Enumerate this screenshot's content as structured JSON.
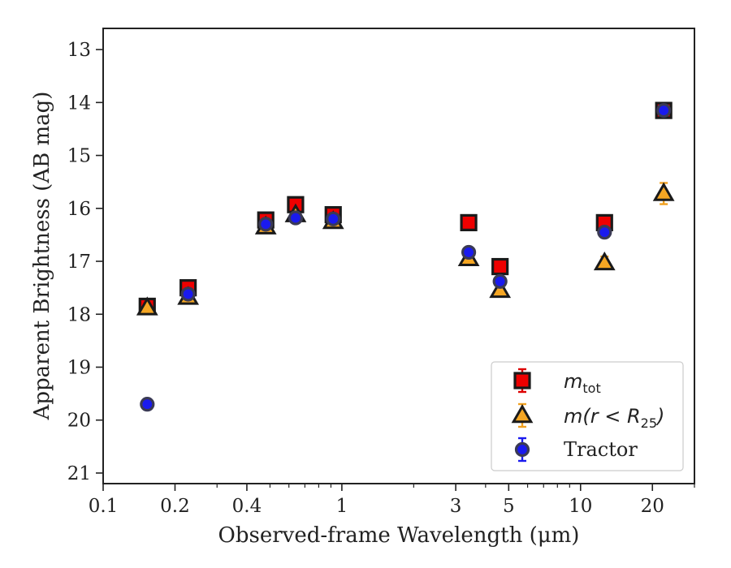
{
  "chart_data": {
    "type": "scatter",
    "title": "",
    "xlabel": "Observed-frame Wavelength (μm)",
    "ylabel": "Apparent Brightness (AB mag)",
    "xscale": "log",
    "xlim": [
      0.1,
      30
    ],
    "ylim": [
      21.2,
      12.6
    ],
    "y_inverted": true,
    "grid": false,
    "legend_position": "lower-right",
    "x_ticks": [
      {
        "value": 0.1,
        "label": "0.1"
      },
      {
        "value": 0.2,
        "label": "0.2"
      },
      {
        "value": 0.4,
        "label": "0.4"
      },
      {
        "value": 1,
        "label": "1"
      },
      {
        "value": 3,
        "label": "3"
      },
      {
        "value": 5,
        "label": "5"
      },
      {
        "value": 10,
        "label": "10"
      },
      {
        "value": 20,
        "label": "20"
      }
    ],
    "y_ticks": [
      {
        "value": 13,
        "label": "13"
      },
      {
        "value": 14,
        "label": "14"
      },
      {
        "value": 15,
        "label": "15"
      },
      {
        "value": 16,
        "label": "16"
      },
      {
        "value": 17,
        "label": "17"
      },
      {
        "value": 18,
        "label": "18"
      },
      {
        "value": 19,
        "label": "19"
      },
      {
        "value": 20,
        "label": "20"
      },
      {
        "value": 21,
        "label": "21"
      }
    ],
    "series": [
      {
        "key": "mtot",
        "name": "m_tot",
        "marker": "square",
        "color": "#ee0000",
        "errcolor": "#dd0000",
        "x": [
          0.153,
          0.227,
          0.48,
          0.64,
          0.92,
          3.4,
          4.6,
          12.6,
          22.3
        ],
        "y": [
          17.85,
          17.5,
          16.22,
          15.93,
          16.12,
          16.27,
          17.1,
          16.27,
          14.15
        ],
        "yerr": [
          0.06,
          0.05,
          0.04,
          0.04,
          0.04,
          0.04,
          0.05,
          0.06,
          0.05
        ]
      },
      {
        "key": "mr25",
        "name": "m(r < R25)",
        "marker": "triangle",
        "color": "#f5a623",
        "errcolor": "#f0a020",
        "x": [
          0.153,
          0.227,
          0.48,
          0.64,
          0.92,
          3.4,
          4.6,
          12.6,
          22.3
        ],
        "y": [
          17.88,
          17.68,
          16.35,
          16.12,
          16.25,
          16.95,
          17.55,
          17.03,
          15.72
        ],
        "yerr": [
          0.05,
          0.05,
          0.04,
          0.04,
          0.04,
          0.04,
          0.05,
          0.12,
          0.2
        ]
      },
      {
        "key": "tractor",
        "name": "Tractor",
        "marker": "circle",
        "color": "#1a1aee",
        "errcolor": "#1a1aee",
        "x": [
          0.153,
          0.227,
          0.48,
          0.64,
          0.92,
          3.4,
          4.6,
          12.6,
          22.3
        ],
        "y": [
          19.7,
          17.62,
          16.3,
          16.18,
          16.2,
          16.83,
          17.38,
          16.45,
          14.15
        ],
        "yerr": [
          0.06,
          0.05,
          0.04,
          0.04,
          0.04,
          0.04,
          0.05,
          0.06,
          0.05
        ]
      }
    ],
    "legend": {
      "mtot_main": "m",
      "mtot_sub": "tot",
      "mr25_main": "m(r < R",
      "mr25_sub": "25",
      "mr25_close": ")",
      "tractor": "Tractor"
    }
  }
}
